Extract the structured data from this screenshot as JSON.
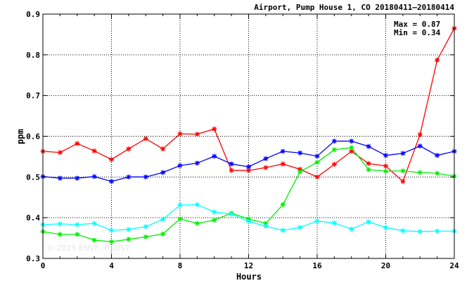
{
  "chart_data": {
    "type": "line",
    "title": "Airport, Pump House 1, CO 20180411–20180414",
    "xlabel": "Hours",
    "ylabel": "ppm",
    "xlim": [
      0,
      24
    ],
    "ylim": [
      0.3,
      0.9
    ],
    "xticks": [
      0,
      4,
      8,
      12,
      16,
      20,
      24
    ],
    "xtick_labels": [
      "0",
      "4",
      "8",
      "12",
      "16",
      "20",
      "24"
    ],
    "yticks": [
      0.3,
      0.4,
      0.5,
      0.6,
      0.7,
      0.8,
      0.9
    ],
    "ytick_labels": [
      "0.3",
      "0.4",
      "0.5",
      "0.6",
      "0.7",
      "0.8",
      "0.9"
    ],
    "grid": true,
    "annotations": {
      "max_text": "Max = 0.87",
      "min_text": "Min = 0.34",
      "watermark": "© 2025  ENVF, HKUST"
    },
    "x": [
      0,
      1,
      2,
      3,
      4,
      5,
      6,
      7,
      8,
      9,
      10,
      11,
      12,
      13,
      14,
      15,
      16,
      17,
      18,
      19,
      20,
      21,
      22,
      23,
      24
    ],
    "series": [
      {
        "color": "#ff0000",
        "values": [
          0.563,
          0.56,
          0.582,
          0.564,
          0.543,
          0.569,
          0.594,
          0.569,
          0.606,
          0.605,
          0.618,
          0.516,
          0.516,
          0.523,
          0.532,
          0.519,
          0.5,
          0.531,
          0.563,
          0.533,
          0.527,
          0.489,
          0.604,
          0.787,
          0.865
        ]
      },
      {
        "color": "#0000ff",
        "values": [
          0.501,
          0.497,
          0.497,
          0.501,
          0.489,
          0.5,
          0.5,
          0.511,
          0.528,
          0.534,
          0.551,
          0.532,
          0.525,
          0.545,
          0.563,
          0.559,
          0.551,
          0.588,
          0.588,
          0.575,
          0.553,
          0.558,
          0.576,
          0.553,
          0.563
        ]
      },
      {
        "color": "#00ee00",
        "values": [
          0.366,
          0.359,
          0.359,
          0.345,
          0.341,
          0.347,
          0.353,
          0.36,
          0.397,
          0.386,
          0.394,
          0.411,
          0.397,
          0.386,
          0.432,
          0.513,
          0.536,
          0.567,
          0.572,
          0.518,
          0.514,
          0.515,
          0.511,
          0.509,
          0.502
        ]
      },
      {
        "color": "#00ffff",
        "values": [
          0.383,
          0.385,
          0.383,
          0.386,
          0.369,
          0.371,
          0.378,
          0.396,
          0.431,
          0.432,
          0.414,
          0.409,
          0.391,
          0.379,
          0.369,
          0.376,
          0.392,
          0.387,
          0.372,
          0.39,
          0.376,
          0.368,
          0.366,
          0.367,
          0.367
        ]
      }
    ]
  }
}
